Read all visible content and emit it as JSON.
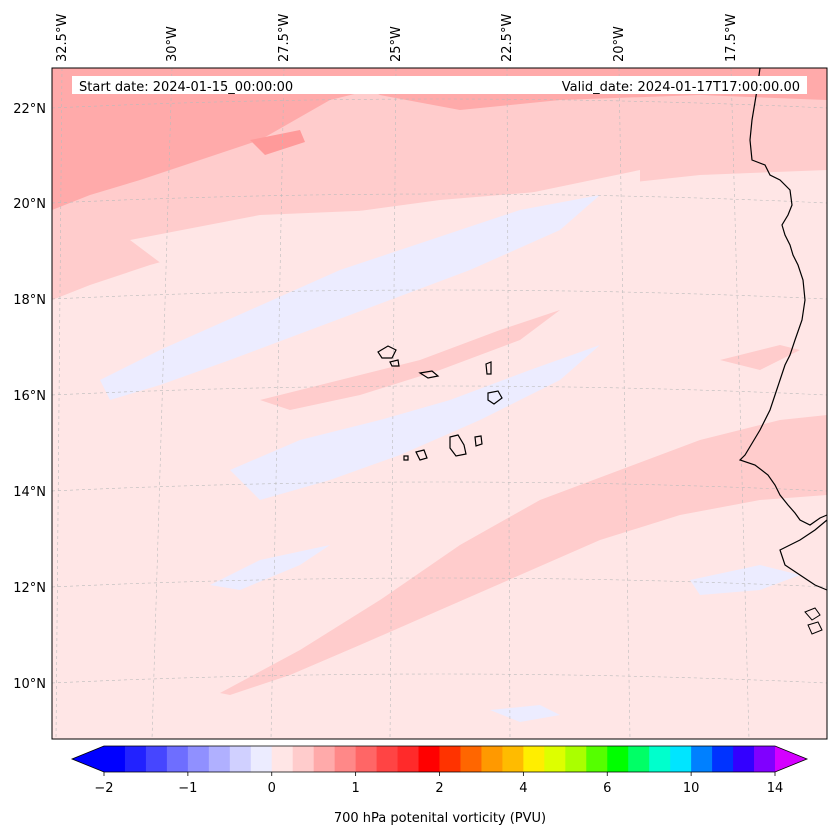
{
  "header": {
    "start_date": "Start date: 2024-01-15_00:00:00",
    "valid_date": "Valid_date: 2024-01-17T17:00:00.00"
  },
  "map": {
    "longitude_labels": [
      "32.5°W",
      "30°W",
      "27.5°W",
      "25°W",
      "22.5°W",
      "20°W",
      "17.5°W"
    ],
    "latitude_labels": [
      "22°N",
      "20°N",
      "18°N",
      "16°N",
      "14°N",
      "12°N",
      "10°N"
    ],
    "field": "700 hPa potential vorticity",
    "background_color": "#ffe6e6"
  },
  "colorbar": {
    "title": "700 hPa potenital vorticity (PVU)",
    "tick_labels": [
      "−2",
      "−1",
      "0",
      "1",
      "2",
      "4",
      "6",
      "10",
      "14"
    ],
    "colors": [
      "#0000ff",
      "#2222ff",
      "#4646ff",
      "#6e6eff",
      "#9090ff",
      "#b0b0ff",
      "#d0d0ff",
      "#ececff",
      "#ffe6e6",
      "#ffcccc",
      "#ffaaaa",
      "#ff8888",
      "#ff6666",
      "#ff4444",
      "#ff2a2a",
      "#ff0000",
      "#ff3300",
      "#ff6600",
      "#ff9900",
      "#ffbb00",
      "#ffee00",
      "#ddff00",
      "#aaff00",
      "#55ff00",
      "#00ff00",
      "#00ff66",
      "#00ffcc",
      "#00e5ff",
      "#0080ff",
      "#0033ff",
      "#3300ff",
      "#8000ff"
    ],
    "under_color": "#0000ff",
    "over_color": "#d400ff"
  }
}
